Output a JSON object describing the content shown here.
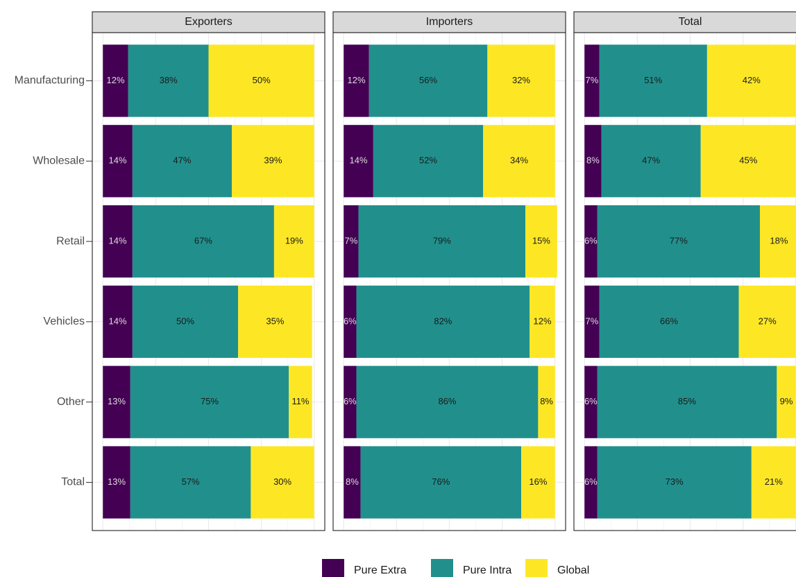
{
  "chart_data": {
    "type": "bar",
    "orientation": "horizontal",
    "stacked": true,
    "categories": [
      "Manufacturing",
      "Wholesale",
      "Retail",
      "Vehicles",
      "Other",
      "Total"
    ],
    "xlim": [
      -5,
      105
    ],
    "xticks": [
      0,
      25,
      50,
      75,
      100
    ],
    "grid": true,
    "legend": "bottom",
    "panels": [
      {
        "title": "Exporters",
        "series": [
          {
            "name": "Pure Extra",
            "color": "#440154",
            "values": [
              12,
              14,
              14,
              14,
              13,
              13
            ],
            "value_labels": [
              "12%",
              "14%",
              "14%",
              "14%",
              "13%",
              "13%"
            ]
          },
          {
            "name": "Pure Intra",
            "color": "#21908c",
            "values": [
              38,
              47,
              67,
              50,
              75,
              57
            ],
            "value_labels": [
              "38%",
              "47%",
              "67%",
              "50%",
              "75%",
              "57%"
            ]
          },
          {
            "name": "Global",
            "color": "#fde725",
            "values": [
              50,
              39,
              19,
              35,
              11,
              30
            ],
            "value_labels": [
              "50%",
              "39%",
              "19%",
              "35%",
              "11%",
              "30%"
            ]
          }
        ]
      },
      {
        "title": "Importers",
        "series": [
          {
            "name": "Pure Extra",
            "color": "#440154",
            "values": [
              12,
              14,
              7,
              6,
              6,
              8
            ],
            "value_labels": [
              "12%",
              "14%",
              "7%",
              "6%",
              "6%",
              "8%"
            ]
          },
          {
            "name": "Pure Intra",
            "color": "#21908c",
            "values": [
              56,
              52,
              79,
              82,
              86,
              76
            ],
            "value_labels": [
              "56%",
              "52%",
              "79%",
              "82%",
              "86%",
              "76%"
            ]
          },
          {
            "name": "Global",
            "color": "#fde725",
            "values": [
              32,
              34,
              15,
              12,
              8,
              16
            ],
            "value_labels": [
              "32%",
              "34%",
              "15%",
              "12%",
              "8%",
              "16%"
            ]
          }
        ]
      },
      {
        "title": "Total",
        "series": [
          {
            "name": "Pure Extra",
            "color": "#440154",
            "values": [
              7,
              8,
              6,
              7,
              6,
              6
            ],
            "value_labels": [
              "7%",
              "8%",
              "6%",
              "7%",
              "6%",
              "6%"
            ]
          },
          {
            "name": "Pure Intra",
            "color": "#21908c",
            "values": [
              51,
              47,
              77,
              66,
              85,
              73
            ],
            "value_labels": [
              "51%",
              "47%",
              "77%",
              "66%",
              "85%",
              "73%"
            ]
          },
          {
            "name": "Global",
            "color": "#fde725",
            "values": [
              42,
              45,
              18,
              27,
              9,
              21
            ],
            "value_labels": [
              "42%",
              "45%",
              "18%",
              "27%",
              "9%",
              "21%"
            ]
          }
        ]
      }
    ]
  }
}
